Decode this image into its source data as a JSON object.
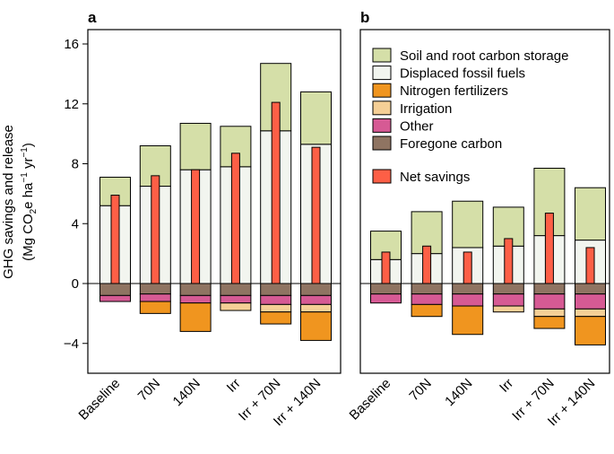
{
  "chart_data": [
    {
      "panel": "a",
      "type": "bar",
      "stacked": true,
      "ylabel": "GHG savings and release",
      "ylabel_units": "(Mg CO2e ha−1 yr−1)",
      "ylim": [
        -6,
        17
      ],
      "yticks": [
        16,
        12,
        8,
        4,
        0,
        -4
      ],
      "categories": [
        "Baseline",
        "70N",
        "140N",
        "Irr",
        "Irr + 70N",
        "Irr + 140N"
      ],
      "series": [
        {
          "name": "Soil and root carbon storage",
          "values": [
            1.9,
            2.7,
            3.1,
            2.7,
            4.5,
            3.5
          ]
        },
        {
          "name": "Displaced fossil fuels",
          "values": [
            5.2,
            6.5,
            7.6,
            7.8,
            10.2,
            9.3
          ]
        },
        {
          "name": "Nitrogen fertilizers",
          "values": [
            0,
            -0.8,
            -1.9,
            0,
            -0.8,
            -1.9
          ]
        },
        {
          "name": "Irrigation",
          "values": [
            0,
            0,
            0,
            -0.5,
            -0.5,
            -0.5
          ]
        },
        {
          "name": "Other",
          "values": [
            -0.4,
            -0.5,
            -0.5,
            -0.5,
            -0.6,
            -0.6
          ]
        },
        {
          "name": "Foregone carbon",
          "values": [
            -0.8,
            -0.7,
            -0.8,
            -0.8,
            -0.8,
            -0.8
          ]
        }
      ],
      "net_savings": [
        5.9,
        7.2,
        7.6,
        8.7,
        12.1,
        9.1
      ]
    },
    {
      "panel": "b",
      "type": "bar",
      "stacked": true,
      "ylim": [
        -6,
        17
      ],
      "categories": [
        "Baseline",
        "70N",
        "140N",
        "Irr",
        "Irr + 70N",
        "Irr + 140N"
      ],
      "series": [
        {
          "name": "Soil and root carbon storage",
          "values": [
            1.9,
            2.8,
            3.1,
            2.6,
            4.5,
            3.5
          ]
        },
        {
          "name": "Displaced fossil fuels",
          "values": [
            1.6,
            2.0,
            2.4,
            2.5,
            3.2,
            2.9
          ]
        },
        {
          "name": "Nitrogen fertilizers",
          "values": [
            0,
            -0.8,
            -1.9,
            0,
            -0.8,
            -1.9
          ]
        },
        {
          "name": "Irrigation",
          "values": [
            0,
            0,
            0,
            -0.4,
            -0.5,
            -0.5
          ]
        },
        {
          "name": "Other",
          "values": [
            -0.6,
            -0.7,
            -0.8,
            -0.8,
            -1.0,
            -1.0
          ]
        },
        {
          "name": "Foregone carbon",
          "values": [
            -0.7,
            -0.7,
            -0.7,
            -0.7,
            -0.7,
            -0.7
          ]
        }
      ],
      "net_savings": [
        2.1,
        2.5,
        2.1,
        3.0,
        4.7,
        2.4
      ]
    }
  ],
  "legend": {
    "items": [
      {
        "label": "Soil and root carbon storage",
        "color": "#d5dfa8"
      },
      {
        "label": "Displaced fossil fuels",
        "color": "#f2f5ef"
      },
      {
        "label": "Nitrogen fertilizers",
        "color": "#f0951f"
      },
      {
        "label": "Irrigation",
        "color": "#f5cf96"
      },
      {
        "label": "Other",
        "color": "#d65a94"
      },
      {
        "label": "Foregone carbon",
        "color": "#8f7462"
      }
    ],
    "net": {
      "label": "Net savings",
      "color": "#fd5f46"
    },
    "placement": "top-left of panel b"
  },
  "panel_labels": [
    "a",
    "b"
  ]
}
